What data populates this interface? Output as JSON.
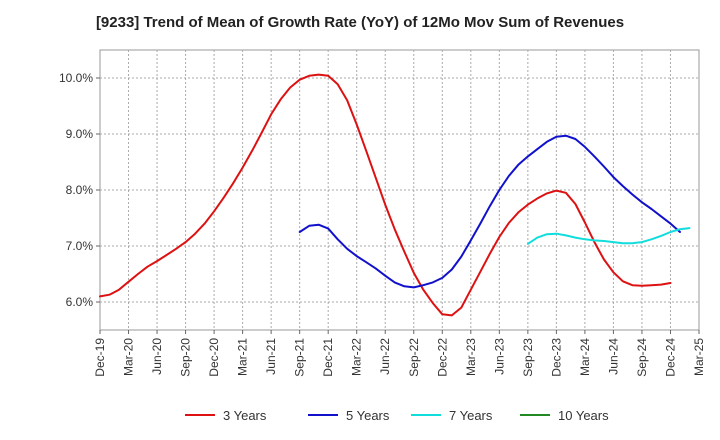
{
  "chart_data": {
    "type": "line",
    "title": "[9233]  Trend of Mean of Growth Rate (YoY) of 12Mo Mov Sum of Revenues",
    "xlabel": "",
    "ylabel": "",
    "ylim": [
      5.5,
      10.5
    ],
    "y_ticks": [
      6.0,
      7.0,
      8.0,
      9.0,
      10.0
    ],
    "y_tick_labels": [
      "6.0%",
      "7.0%",
      "8.0%",
      "9.0%",
      "10.0%"
    ],
    "x_range": [
      0,
      63
    ],
    "x_ticks": [
      0,
      3,
      6,
      9,
      12,
      15,
      18,
      21,
      24,
      27,
      30,
      33,
      36,
      39,
      42,
      45,
      48,
      51,
      54,
      57,
      60,
      63
    ],
    "x_tick_labels": [
      "Dec-19",
      "Mar-20",
      "Jun-20",
      "Sep-20",
      "Dec-20",
      "Mar-21",
      "Jun-21",
      "Sep-21",
      "Dec-21",
      "Mar-22",
      "Jun-22",
      "Sep-22",
      "Dec-22",
      "Mar-23",
      "Jun-23",
      "Sep-23",
      "Dec-23",
      "Mar-24",
      "Jun-24",
      "Sep-24",
      "Dec-24",
      "Mar-25"
    ],
    "grid": true,
    "legend_position": "bottom",
    "series": [
      {
        "name": "3 Years",
        "color": "#dd1111",
        "start_index": 0,
        "values": [
          6.1,
          6.13,
          6.22,
          6.36,
          6.5,
          6.63,
          6.73,
          6.84,
          6.95,
          7.07,
          7.22,
          7.4,
          7.62,
          7.86,
          8.12,
          8.4,
          8.7,
          9.02,
          9.35,
          9.62,
          9.83,
          9.97,
          10.04,
          10.06,
          10.04,
          9.89,
          9.6,
          9.17,
          8.7,
          8.22,
          7.74,
          7.3,
          6.9,
          6.52,
          6.22,
          5.98,
          5.78,
          5.76,
          5.9,
          6.22,
          6.54,
          6.86,
          7.16,
          7.41,
          7.6,
          7.74,
          7.85,
          7.94,
          7.99,
          7.95,
          7.75,
          7.42,
          7.07,
          6.76,
          6.53,
          6.37,
          6.3,
          6.29,
          6.3,
          6.31,
          6.34
        ]
      },
      {
        "name": "5 Years",
        "color": "#1111cc",
        "start_index": 21,
        "values": [
          7.25,
          7.36,
          7.38,
          7.31,
          7.12,
          6.95,
          6.82,
          6.71,
          6.6,
          6.47,
          6.35,
          6.28,
          6.26,
          6.3,
          6.35,
          6.43,
          6.58,
          6.81,
          7.1,
          7.4,
          7.71,
          8.0,
          8.25,
          8.45,
          8.6,
          8.73,
          8.86,
          8.95,
          8.97,
          8.91,
          8.77,
          8.6,
          8.42,
          8.23,
          8.07,
          7.92,
          7.78,
          7.66,
          7.53,
          7.4,
          7.25
        ]
      },
      {
        "name": "7 Years",
        "color": "#11dddd",
        "start_index": 45,
        "values": [
          7.04,
          7.15,
          7.21,
          7.22,
          7.19,
          7.15,
          7.12,
          7.1,
          7.09,
          7.07,
          7.05,
          7.05,
          7.07,
          7.12,
          7.18,
          7.25,
          7.3,
          7.32
        ]
      },
      {
        "name": "10 Years",
        "color": "#228822",
        "start_index": 0,
        "values": []
      }
    ]
  }
}
